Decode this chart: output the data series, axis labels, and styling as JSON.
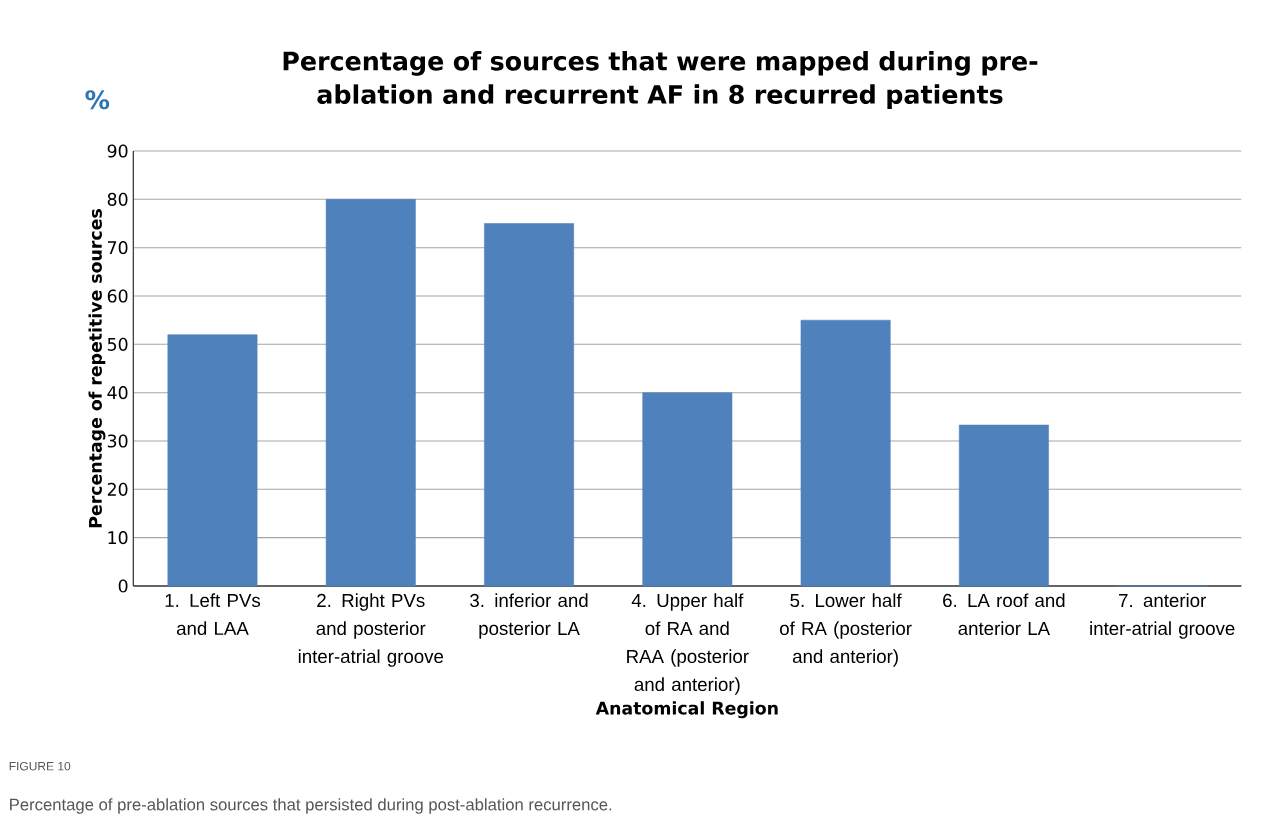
{
  "chart_data": {
    "type": "bar",
    "title": "Percentage of sources that were mapped during pre-ablation and recurrent AF in 8 recurred patients",
    "xlabel": "Anatomical Region",
    "ylabel": "Percentage of repetitive sources",
    "categories": [
      "1. Left PVs and LAA",
      "2. Right PVs and posterior inter-atrial groove",
      "3. inferior and posterior LA",
      "4. Upper half of RA and RAA (posterior and anterior)",
      "5. Lower half of RA (posterior and anterior)",
      "6. LA roof and anterior LA",
      "7. anterior inter-atrial groove"
    ],
    "values": [
      52,
      80,
      75,
      40,
      55,
      33.3,
      0
    ],
    "color": "#4f81bd",
    "ylim": [
      0,
      90
    ],
    "yticks": [
      0,
      10,
      20,
      30,
      40,
      50,
      60,
      70,
      80,
      90
    ],
    "grid": "y",
    "annotations": [
      "%",
      "FIGURE 10",
      "Percentage of pre-ablation sources that persisted during post-ablation recurrence."
    ]
  }
}
